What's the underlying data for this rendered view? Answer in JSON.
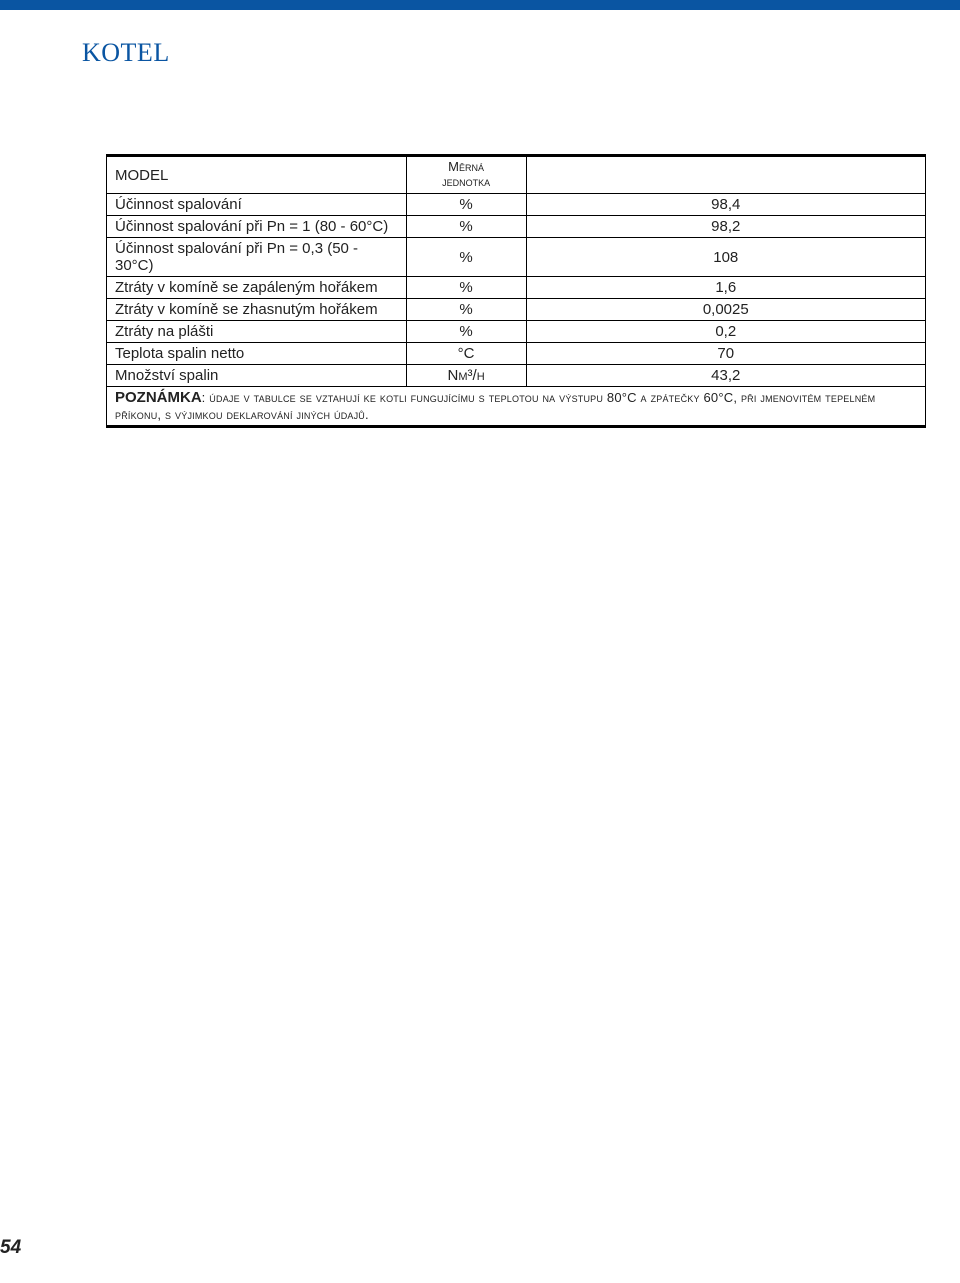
{
  "page": {
    "title": "KOTEL",
    "page_number": "54",
    "topbar_color": "#0a55a2",
    "title_color": "#0a55a2",
    "background_color": "#ffffff",
    "border_color": "#000000",
    "text_color": "#222222"
  },
  "table": {
    "header": {
      "param_label": "MODEL",
      "unit_label_line1": "Měrná",
      "unit_label_line2": "jednotka",
      "value_label": ""
    },
    "rows": [
      {
        "param": "Účinnost spalování",
        "unit": "%",
        "value": "98,4"
      },
      {
        "param": "Účinnost spalování při Pn = 1 (80 - 60°C)",
        "unit": "%",
        "value": "98,2"
      },
      {
        "param": "Účinnost spalování při Pn = 0,3 (50 - 30°C)",
        "unit": "%",
        "value": "108"
      },
      {
        "param": "Ztráty v komíně se zapáleným hořákem",
        "unit": "%",
        "value": "1,6"
      },
      {
        "param": "Ztráty v komíně se zhasnutým hořákem",
        "unit": "%",
        "value": "0,0025"
      },
      {
        "param": "Ztráty na plášti",
        "unit": "%",
        "value": "0,2"
      },
      {
        "param": "Teplota spalin netto",
        "unit": "°C",
        "value": "70"
      },
      {
        "param": "Množství spalin",
        "unit": "Nm³/h",
        "value": "43,2"
      }
    ],
    "note": {
      "label": "POZNÁMKA",
      "text": ": údaje v tabulce se vztahují ke kotli fungujícímu s teplotou na výstupu 80°C a zpátečky 60°C, při jmenovitém tepelném příkonu, s výjimkou deklarování jiných údajů."
    }
  }
}
